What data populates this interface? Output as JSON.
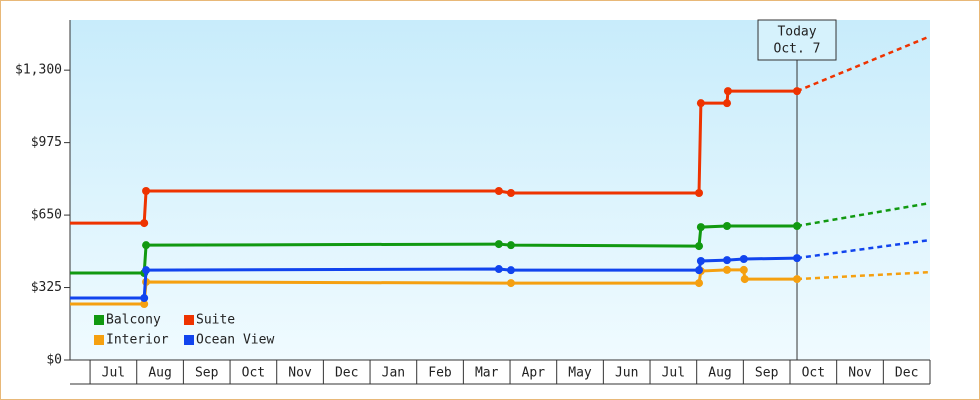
{
  "chart_data": {
    "type": "line",
    "xlim": [
      -0.43,
      18
    ],
    "xticks": [
      {
        "value": 0,
        "label": "Jul"
      },
      {
        "value": 1,
        "label": "Aug"
      },
      {
        "value": 2,
        "label": "Sep"
      },
      {
        "value": 3,
        "label": "Oct"
      },
      {
        "value": 4,
        "label": "Nov"
      },
      {
        "value": 5,
        "label": "Dec"
      },
      {
        "value": 6,
        "label": "Jan"
      },
      {
        "value": 7,
        "label": "Feb"
      },
      {
        "value": 8,
        "label": "Mar"
      },
      {
        "value": 9,
        "label": "Apr"
      },
      {
        "value": 10,
        "label": "May"
      },
      {
        "value": 11,
        "label": "Jun"
      },
      {
        "value": 12,
        "label": "Jul"
      },
      {
        "value": 13,
        "label": "Aug"
      },
      {
        "value": 14,
        "label": "Sep"
      },
      {
        "value": 15,
        "label": "Oct"
      },
      {
        "value": 16,
        "label": "Nov"
      },
      {
        "value": 17,
        "label": "Dec"
      }
    ],
    "ylim": [
      0,
      1525
    ],
    "yticks": [
      {
        "value": 0,
        "label": "$0"
      },
      {
        "value": 325,
        "label": "$325"
      },
      {
        "value": 650,
        "label": "$650"
      },
      {
        "value": 975,
        "label": "$975"
      },
      {
        "value": 1300,
        "label": "$1,300"
      }
    ],
    "annotation": {
      "x": 15.15,
      "lines": [
        "Today",
        "Oct. 7"
      ]
    },
    "series": [
      {
        "name": "Balcony",
        "color": "#119911",
        "x": [
          -0.43,
          1.16,
          1.2,
          8.76,
          9.02,
          13.05,
          13.09,
          13.65,
          15.15
        ],
        "values": [
          390,
          390,
          515,
          520,
          515,
          511,
          596,
          601,
          601
        ],
        "forecast": {
          "x": [
            15.15,
            18
          ],
          "values": [
            601,
            704
          ]
        }
      },
      {
        "name": "Suite",
        "color": "#ee3300",
        "x": [
          -0.43,
          1.16,
          1.2,
          8.76,
          9.02,
          13.05,
          13.09,
          13.65,
          13.67,
          15.15
        ],
        "values": [
          614,
          614,
          758,
          758,
          749,
          749,
          1152,
          1152,
          1206,
          1206
        ],
        "forecast": {
          "x": [
            15.15,
            18
          ],
          "values": [
            1206,
            1452
          ]
        }
      },
      {
        "name": "Interior",
        "color": "#f5a010",
        "x": [
          -0.43,
          1.16,
          1.2,
          9.02,
          13.05,
          13.09,
          13.65,
          14.01,
          14.03,
          15.15
        ],
        "values": [
          251,
          251,
          350,
          345,
          345,
          399,
          404,
          404,
          363,
          363
        ],
        "forecast": {
          "x": [
            15.15,
            18
          ],
          "values": [
            363,
            394
          ]
        }
      },
      {
        "name": "Ocean View",
        "color": "#1144ee",
        "x": [
          -0.43,
          1.16,
          1.2,
          8.76,
          9.02,
          13.05,
          13.09,
          13.65,
          14.01,
          15.15
        ],
        "values": [
          278,
          278,
          403,
          408,
          403,
          403,
          444,
          448,
          453,
          457
        ],
        "forecast": {
          "x": [
            15.15,
            18
          ],
          "values": [
            457,
            538
          ]
        }
      }
    ]
  }
}
